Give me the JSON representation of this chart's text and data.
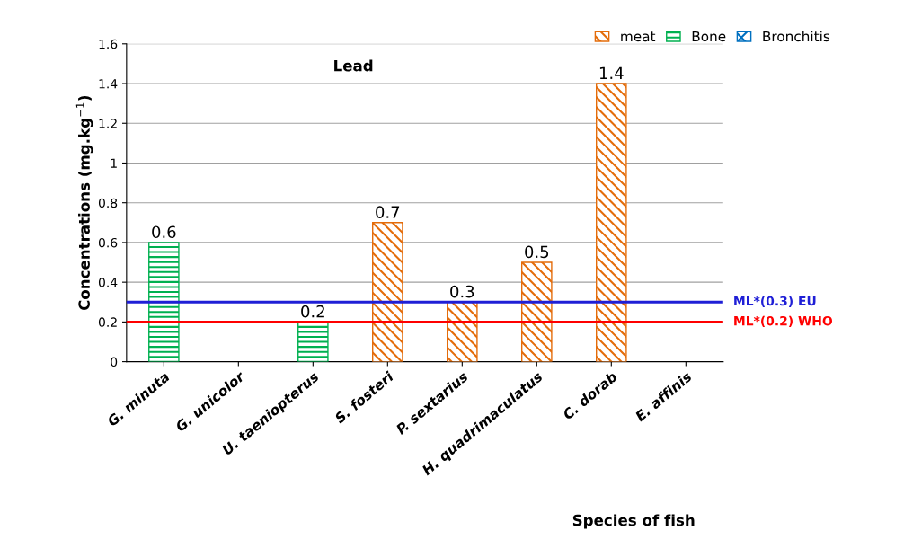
{
  "chart_data": {
    "type": "bar",
    "title": "Lead",
    "xlabel": "Species of fish",
    "ylabel": "Concentrations (mg.kg$^{−1}$)",
    "categories": [
      "G. minuta",
      "G. unicolor",
      "U. taeniopterus",
      "S. fosteri",
      "P. sextarius",
      "H. quadrimaculatus",
      "C. dorab",
      "E. affinis"
    ],
    "series": [
      {
        "name": "meat",
        "color": "#e46c0a",
        "values": [
          null,
          null,
          null,
          0.7,
          0.3,
          0.5,
          1.4,
          null
        ]
      },
      {
        "name": "Bone",
        "color": "#00b050",
        "values": [
          0.6,
          null,
          0.2,
          null,
          null,
          null,
          null,
          null
        ]
      },
      {
        "name": "Bronchitis",
        "color": "#0070c0",
        "values": [
          null,
          null,
          null,
          null,
          null,
          null,
          null,
          null
        ]
      }
    ],
    "data_labels": true,
    "ylim": [
      0,
      1.6
    ],
    "yticks": [
      0,
      0.2,
      0.4,
      0.6,
      0.8,
      1,
      1.2,
      1.4,
      1.6
    ],
    "ref_lines": [
      {
        "axis": "y",
        "value": 0.3,
        "label": "ML*(0.3) EU",
        "color": "#1f1fd6"
      },
      {
        "axis": "y",
        "value": 0.2,
        "label": "ML*(0.2) WHO",
        "color": "#ff0000"
      }
    ],
    "grid": "y",
    "legend": "top right"
  }
}
